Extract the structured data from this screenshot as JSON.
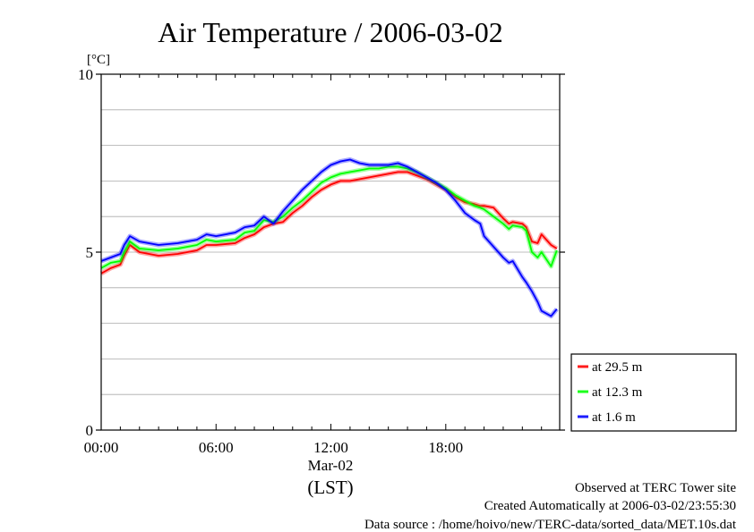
{
  "chart_data": {
    "type": "line",
    "title": "Air Temperature / 2006-03-02",
    "ylabel": "[°C]",
    "xlabel": "(LST)",
    "date_label": "Mar-02",
    "ylim": [
      0,
      10
    ],
    "xlim": [
      0,
      23.95
    ],
    "y_ticks": [
      {
        "value": 0,
        "label": "0"
      },
      {
        "value": 5,
        "label": "5"
      },
      {
        "value": 10,
        "label": "10"
      }
    ],
    "y_grid": [
      1,
      2,
      3,
      4,
      6,
      7,
      8,
      9
    ],
    "x_ticks": [
      {
        "value": 0,
        "label": "00:00"
      },
      {
        "value": 6,
        "label": "06:00"
      },
      {
        "value": 12,
        "label": "12:00"
      },
      {
        "value": 18,
        "label": "18:00"
      }
    ],
    "grid": true,
    "legend_position": "bottom-right",
    "series": [
      {
        "name": "at 29.5 m",
        "color": "#ff0000",
        "x": [
          0,
          0.5,
          1.0,
          1.2,
          1.5,
          2.0,
          3.0,
          4.0,
          5.0,
          5.5,
          6.0,
          7.0,
          7.5,
          8.0,
          8.5,
          9.0,
          9.5,
          10.0,
          10.5,
          11.0,
          11.5,
          12.0,
          12.5,
          13.0,
          13.5,
          14.0,
          14.5,
          15.0,
          15.5,
          16.0,
          16.5,
          17.0,
          17.5,
          18.0,
          18.5,
          19.0,
          19.5,
          19.8,
          20.0,
          20.5,
          21.0,
          21.3,
          21.5,
          22.0,
          22.2,
          22.5,
          22.8,
          23.0,
          23.5,
          23.8
        ],
        "values": [
          4.4,
          4.55,
          4.65,
          4.9,
          5.2,
          5.0,
          4.9,
          4.95,
          5.05,
          5.2,
          5.2,
          5.25,
          5.4,
          5.5,
          5.7,
          5.8,
          5.85,
          6.1,
          6.3,
          6.55,
          6.75,
          6.9,
          7.0,
          7.0,
          7.05,
          7.1,
          7.15,
          7.2,
          7.25,
          7.25,
          7.15,
          7.05,
          6.9,
          6.75,
          6.55,
          6.4,
          6.35,
          6.3,
          6.3,
          6.25,
          5.95,
          5.8,
          5.85,
          5.8,
          5.7,
          5.3,
          5.25,
          5.5,
          5.2,
          5.1
        ]
      },
      {
        "name": "at 12.3 m",
        "color": "#00ff00",
        "x": [
          0,
          0.5,
          1.0,
          1.2,
          1.5,
          2.0,
          3.0,
          4.0,
          5.0,
          5.5,
          6.0,
          7.0,
          7.5,
          8.0,
          8.5,
          9.0,
          9.5,
          10.0,
          10.5,
          11.0,
          11.5,
          12.0,
          12.5,
          13.0,
          13.5,
          14.0,
          14.5,
          15.0,
          15.5,
          16.0,
          16.5,
          17.0,
          17.5,
          18.0,
          18.5,
          19.0,
          19.5,
          19.8,
          20.0,
          20.5,
          21.0,
          21.3,
          21.5,
          22.0,
          22.2,
          22.5,
          22.8,
          23.0,
          23.5,
          23.8
        ],
        "values": [
          4.55,
          4.7,
          4.75,
          5.0,
          5.3,
          5.1,
          5.05,
          5.1,
          5.2,
          5.35,
          5.3,
          5.35,
          5.55,
          5.6,
          5.9,
          5.85,
          6.0,
          6.25,
          6.45,
          6.7,
          6.95,
          7.1,
          7.2,
          7.25,
          7.3,
          7.35,
          7.35,
          7.4,
          7.4,
          7.35,
          7.25,
          7.1,
          6.95,
          6.8,
          6.6,
          6.45,
          6.3,
          6.25,
          6.2,
          6.0,
          5.8,
          5.65,
          5.75,
          5.7,
          5.6,
          5.0,
          4.85,
          5.0,
          4.6,
          5.05
        ]
      },
      {
        "name": "at 1.6 m",
        "color": "#0000ff",
        "x": [
          0,
          0.5,
          1.0,
          1.2,
          1.5,
          2.0,
          3.0,
          4.0,
          5.0,
          5.5,
          6.0,
          7.0,
          7.5,
          8.0,
          8.5,
          9.0,
          9.5,
          10.0,
          10.5,
          11.0,
          11.5,
          12.0,
          12.5,
          13.0,
          13.5,
          14.0,
          14.5,
          15.0,
          15.5,
          16.0,
          16.5,
          17.0,
          17.5,
          18.0,
          18.5,
          19.0,
          19.5,
          19.8,
          20.0,
          20.5,
          21.0,
          21.3,
          21.5,
          22.0,
          22.2,
          22.5,
          22.8,
          23.0,
          23.5,
          23.8
        ],
        "values": [
          4.75,
          4.85,
          4.95,
          5.2,
          5.45,
          5.3,
          5.2,
          5.25,
          5.35,
          5.5,
          5.45,
          5.55,
          5.7,
          5.75,
          6.0,
          5.8,
          6.15,
          6.45,
          6.75,
          7.0,
          7.25,
          7.45,
          7.55,
          7.6,
          7.5,
          7.45,
          7.45,
          7.45,
          7.5,
          7.4,
          7.25,
          7.1,
          6.95,
          6.75,
          6.45,
          6.1,
          5.9,
          5.8,
          5.45,
          5.15,
          4.85,
          4.7,
          4.75,
          4.3,
          4.15,
          3.9,
          3.6,
          3.35,
          3.2,
          3.4
        ]
      }
    ]
  },
  "footer": {
    "observed": "Observed at TERC Tower site",
    "created": "Created Automatically at 2006-03-02/23:55:30",
    "source": "Data source : /home/hoivo/new/TERC-data/sorted_data/MET.10s.dat"
  }
}
